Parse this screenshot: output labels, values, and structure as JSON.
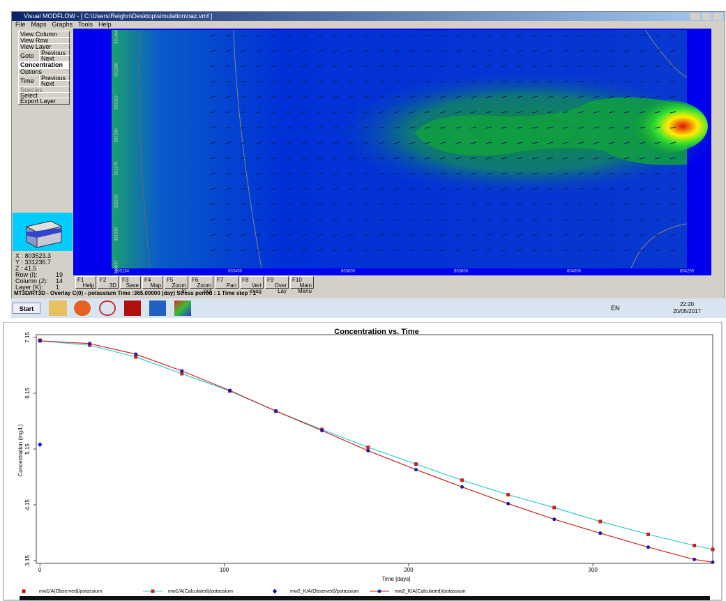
{
  "window": {
    "title": "Visual MODFLOW - [ C:\\Users\\Reighn\\Desktop\\simulation\\naz.vmf ]",
    "menu": [
      "File",
      "Maps",
      "Graphs",
      "Tools",
      "Help"
    ]
  },
  "side_panel": {
    "view_column": "View Column",
    "view_row": "View Row",
    "view_layer": "View Layer",
    "goto": "Goto",
    "previous": "Previous",
    "next": "Next",
    "concentration": "Concentration",
    "options": "Options",
    "time": "Time",
    "time_previous": "Previous",
    "time_next": "Next",
    "species": "Species",
    "select": "Select",
    "export_layer": "Export Layer",
    "coords": [
      "X : 803523.3",
      "Y : 331236.7",
      "Z : 41.5"
    ],
    "cells": [
      [
        "Row (I):",
        "19"
      ],
      [
        "Column (J):",
        "14"
      ],
      [
        "Layer (K):",
        "1"
      ]
    ]
  },
  "map": {
    "y_labels": [
      "331464",
      "331380",
      "331310",
      "331240",
      "331170",
      "331100",
      "331030",
      "330937"
    ],
    "x_labels": [
      "803184",
      "803400",
      "803600",
      "803800",
      "804000",
      "804209"
    ]
  },
  "toolbar": [
    {
      "key": "F1",
      "label": "Help"
    },
    {
      "key": "F2",
      "label": "3D"
    },
    {
      "key": "F3",
      "label": "Save"
    },
    {
      "key": "F4",
      "label": "Map"
    },
    {
      "key": "F5",
      "label": "Zoom in"
    },
    {
      "key": "F6",
      "label": "Zoom out"
    },
    {
      "key": "F7",
      "label": "Pan"
    },
    {
      "key": "F8",
      "label": "Vert exag"
    },
    {
      "key": "F9",
      "label": "Over Lay"
    },
    {
      "key": "F10",
      "label": "Main Menu"
    }
  ],
  "status": "MT3D/RT3D - Overlay C(0) - potassium Time :365.00000 (day) Stress period : 1 Time step : 1",
  "taskbar": {
    "start": "Start",
    "lang": "EN",
    "time": "22:20",
    "date": "20/05/2017"
  },
  "chart_data": {
    "type": "line",
    "title": "Concentration vs. Time",
    "x_label": "Time [days]",
    "y_label": "Concentration (mg/L)",
    "xlim": [
      -2,
      365
    ],
    "ylim": [
      3.1,
      7.2
    ],
    "xticks": [
      0,
      100,
      200,
      300
    ],
    "yticks": [
      3.15,
      4.15,
      5.15,
      6.15,
      7.15
    ],
    "series": [
      {
        "name": "mw1/A(Observed)/potassium",
        "color": "#cc0000",
        "marker": "square",
        "line": false,
        "x": [
          0
        ],
        "values": [
          7.1
        ]
      },
      {
        "name": "mw1/A(Calculated)/potassium",
        "color": "#33cccc",
        "marker_color": "#cc2222",
        "marker": "square",
        "line": true,
        "x": [
          0,
          27,
          52,
          77,
          103,
          128,
          153,
          178,
          204,
          229,
          254,
          279,
          304,
          330,
          355,
          365
        ],
        "values": [
          7.09,
          7.01,
          6.8,
          6.5,
          6.19,
          5.83,
          5.5,
          5.18,
          4.88,
          4.59,
          4.33,
          4.1,
          3.85,
          3.62,
          3.42,
          3.35
        ]
      },
      {
        "name": "mw2_K/A(Observed)/potassium",
        "color": "#0000cc",
        "marker": "diamond",
        "line": false,
        "x": [
          0
        ],
        "values": [
          5.23
        ]
      },
      {
        "name": "mw2_K/A(Calculated)/potassium",
        "color": "#cc2222",
        "marker_color": "#1a1aaa",
        "marker": "circle",
        "line": true,
        "x": [
          0,
          27,
          52,
          77,
          103,
          128,
          153,
          178,
          204,
          229,
          254,
          279,
          304,
          330,
          355,
          365
        ],
        "values": [
          7.09,
          7.04,
          6.85,
          6.55,
          6.2,
          5.83,
          5.48,
          5.12,
          4.78,
          4.47,
          4.17,
          3.89,
          3.64,
          3.39,
          3.17,
          3.12
        ]
      }
    ]
  }
}
